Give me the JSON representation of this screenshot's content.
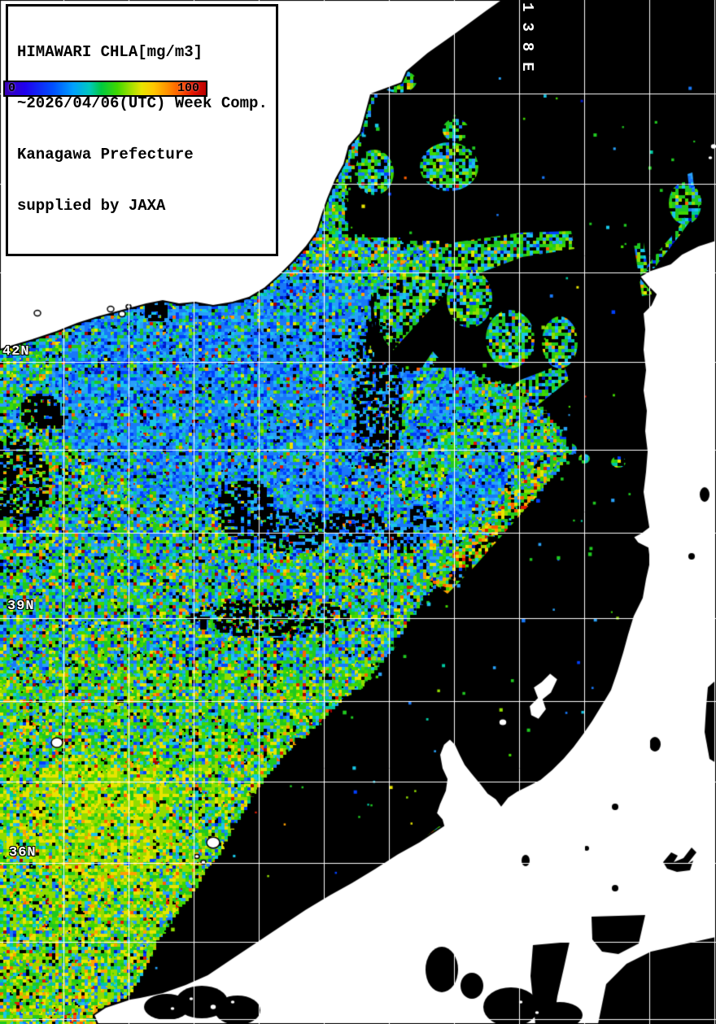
{
  "header": {
    "title_lines": [
      "HIMAWARI CHLA[mg/m3]",
      "~2026/04/06(UTC) Week Comp.",
      "Kanagawa Prefecture",
      "supplied by JAXA"
    ]
  },
  "colorbar": {
    "min_label": "0",
    "max_label": "100",
    "unit": "mg/m3",
    "gradient_stops": [
      [
        "0%",
        "#3a00b4"
      ],
      [
        "10%",
        "#2000ee"
      ],
      [
        "24%",
        "#0050ff"
      ],
      [
        "34%",
        "#00a0ff"
      ],
      [
        "42%",
        "#00c8c0"
      ],
      [
        "48%",
        "#00c840"
      ],
      [
        "56%",
        "#40d800"
      ],
      [
        "62%",
        "#98e000"
      ],
      [
        "68%",
        "#e8e400"
      ],
      [
        "74%",
        "#ffc800"
      ],
      [
        "81%",
        "#ff9000"
      ],
      [
        "88%",
        "#ff5000"
      ],
      [
        "94%",
        "#e01000"
      ],
      [
        "100%",
        "#bc0000"
      ]
    ]
  },
  "map": {
    "grid": {
      "longitude_label": {
        "text": "138E"
      },
      "latitude_labels": [
        {
          "text": "42N"
        },
        {
          "text": "39N"
        },
        {
          "text": "36N"
        }
      ],
      "v_lines": [
        78,
        158,
        238,
        318,
        398,
        478,
        558,
        638,
        718,
        798,
        878
      ],
      "h_lines": [
        115,
        226,
        335,
        445,
        553,
        655,
        760,
        862,
        961,
        1061,
        1158,
        1253
      ],
      "grid_color": "#ffffff"
    },
    "colors": {
      "land": "#ffffff",
      "no_data": "#000000",
      "coast_outline": "#000000"
    },
    "palette": {
      "black": "#000000",
      "dblue": "#0018c8",
      "blue": "#0040ff",
      "mblue": "#1878f8",
      "lblue": "#28a0f8",
      "cyan": "#18c8e8",
      "teal": "#00c8a0",
      "green": "#20c820",
      "green2": "#40d800",
      "ygreen": "#90dc00",
      "yellow": "#e8e400",
      "orange": "#ffa000",
      "dorange": "#ff6000",
      "red": "#e01800",
      "dred": "#a00000"
    }
  }
}
